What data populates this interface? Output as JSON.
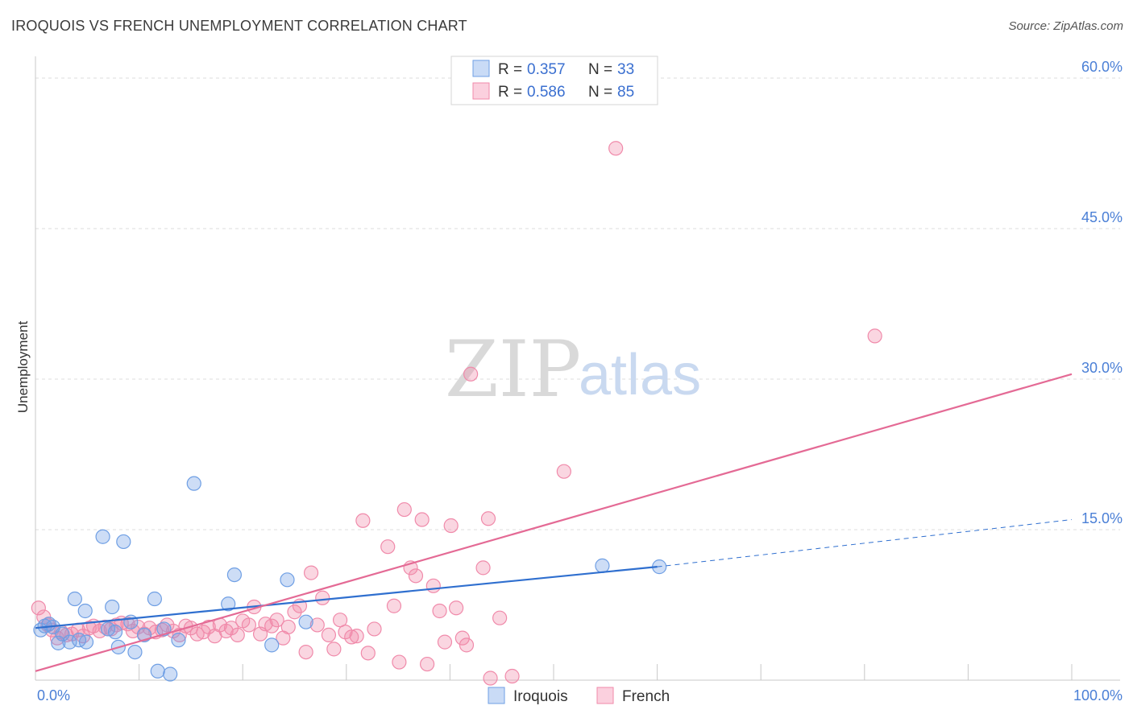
{
  "title": "IROQUOIS VS FRENCH UNEMPLOYMENT CORRELATION CHART",
  "source": "Source: ZipAtlas.com",
  "watermark": {
    "zip": "ZIP",
    "atlas": "atlas"
  },
  "colors": {
    "iroquois": "#6f9fe4",
    "iroquois_line": "#2f6fcf",
    "french": "#f08aaa",
    "french_line": "#e46a95",
    "tick_label": "#4a7fd6"
  },
  "legend": {
    "r_label": "R =",
    "n_label": "N =",
    "iroquois": {
      "r": "0.357",
      "n": "33"
    },
    "french": {
      "r": "0.586",
      "n": "85"
    }
  },
  "chart_data": {
    "type": "scatter",
    "title": "IROQUOIS VS FRENCH UNEMPLOYMENT CORRELATION CHART",
    "xlabel": "",
    "ylabel": "Unemployment",
    "xlim": [
      0,
      100
    ],
    "ylim": [
      0,
      60
    ],
    "x_tick_labels": [
      "0.0%",
      "100.0%"
    ],
    "y_ticks": [
      15,
      30,
      45,
      60
    ],
    "y_tick_labels": [
      "15.0%",
      "30.0%",
      "45.0%",
      "60.0%"
    ],
    "grid": true,
    "legend_position": "top-center",
    "series": [
      {
        "name": "Iroquois",
        "r": 0.357,
        "n": 33,
        "trend": {
          "x0": 0,
          "y0": 5.2,
          "x1": 60,
          "y1": 11.3,
          "dashed_to_x": 100,
          "dashed_to_y": 16.0
        },
        "points": [
          [
            0.5,
            5.0
          ],
          [
            0.9,
            5.4
          ],
          [
            1.3,
            5.6
          ],
          [
            1.7,
            5.3
          ],
          [
            2.2,
            3.7
          ],
          [
            2.6,
            4.6
          ],
          [
            3.3,
            3.8
          ],
          [
            3.8,
            8.1
          ],
          [
            4.2,
            4.0
          ],
          [
            4.8,
            6.9
          ],
          [
            4.9,
            3.8
          ],
          [
            6.5,
            14.3
          ],
          [
            7.0,
            5.1
          ],
          [
            7.4,
            7.3
          ],
          [
            7.7,
            4.8
          ],
          [
            8.0,
            3.3
          ],
          [
            8.5,
            13.8
          ],
          [
            9.2,
            5.8
          ],
          [
            9.6,
            2.8
          ],
          [
            10.5,
            4.5
          ],
          [
            11.5,
            8.1
          ],
          [
            11.8,
            0.9
          ],
          [
            12.4,
            5.1
          ],
          [
            13.0,
            0.6
          ],
          [
            13.8,
            4.0
          ],
          [
            15.3,
            19.6
          ],
          [
            18.6,
            7.6
          ],
          [
            19.2,
            10.5
          ],
          [
            22.8,
            3.5
          ],
          [
            24.3,
            10.0
          ],
          [
            26.1,
            5.8
          ],
          [
            54.7,
            11.4
          ],
          [
            60.2,
            11.3
          ]
        ]
      },
      {
        "name": "French",
        "r": 0.586,
        "n": 85,
        "trend": {
          "x0": 0,
          "y0": 0.9,
          "x1": 100,
          "y1": 30.5
        },
        "points": [
          [
            0.3,
            7.2
          ],
          [
            0.8,
            6.3
          ],
          [
            1.2,
            5.5
          ],
          [
            1.6,
            5.0
          ],
          [
            2.1,
            4.2
          ],
          [
            2.5,
            4.8
          ],
          [
            3.0,
            4.5
          ],
          [
            3.5,
            4.6
          ],
          [
            4.1,
            5.0
          ],
          [
            4.6,
            4.4
          ],
          [
            5.2,
            5.2
          ],
          [
            5.6,
            5.4
          ],
          [
            6.2,
            4.9
          ],
          [
            6.7,
            5.3
          ],
          [
            7.3,
            5.1
          ],
          [
            7.8,
            5.5
          ],
          [
            8.3,
            5.7
          ],
          [
            8.9,
            5.6
          ],
          [
            9.4,
            4.9
          ],
          [
            9.9,
            5.3
          ],
          [
            10.5,
            4.6
          ],
          [
            11.0,
            5.2
          ],
          [
            11.6,
            4.8
          ],
          [
            12.2,
            5.0
          ],
          [
            12.7,
            5.5
          ],
          [
            13.3,
            4.9
          ],
          [
            13.9,
            4.5
          ],
          [
            14.5,
            5.4
          ],
          [
            15.0,
            5.2
          ],
          [
            15.6,
            4.6
          ],
          [
            16.2,
            4.8
          ],
          [
            16.7,
            5.3
          ],
          [
            17.3,
            4.4
          ],
          [
            17.8,
            5.5
          ],
          [
            18.4,
            4.9
          ],
          [
            18.9,
            5.2
          ],
          [
            19.5,
            4.5
          ],
          [
            20.0,
            5.9
          ],
          [
            20.6,
            5.5
          ],
          [
            21.1,
            7.3
          ],
          [
            21.7,
            4.6
          ],
          [
            22.2,
            5.6
          ],
          [
            22.8,
            5.4
          ],
          [
            23.3,
            6.0
          ],
          [
            23.9,
            4.2
          ],
          [
            24.4,
            5.3
          ],
          [
            25.0,
            6.8
          ],
          [
            25.5,
            7.4
          ],
          [
            26.1,
            2.8
          ],
          [
            26.6,
            10.7
          ],
          [
            27.2,
            5.5
          ],
          [
            27.7,
            8.2
          ],
          [
            28.3,
            4.5
          ],
          [
            28.8,
            3.1
          ],
          [
            29.4,
            6.0
          ],
          [
            29.9,
            4.8
          ],
          [
            30.5,
            4.3
          ],
          [
            31.0,
            4.4
          ],
          [
            31.6,
            15.9
          ],
          [
            32.1,
            2.7
          ],
          [
            32.7,
            5.1
          ],
          [
            34.0,
            13.3
          ],
          [
            34.6,
            7.4
          ],
          [
            35.1,
            1.8
          ],
          [
            35.6,
            17.0
          ],
          [
            36.2,
            11.2
          ],
          [
            36.7,
            10.4
          ],
          [
            37.3,
            16.0
          ],
          [
            37.8,
            1.6
          ],
          [
            38.4,
            9.4
          ],
          [
            39.0,
            6.9
          ],
          [
            39.5,
            3.8
          ],
          [
            40.1,
            15.4
          ],
          [
            40.6,
            7.2
          ],
          [
            41.2,
            4.2
          ],
          [
            41.6,
            3.5
          ],
          [
            42.0,
            30.5
          ],
          [
            43.2,
            11.2
          ],
          [
            43.7,
            16.1
          ],
          [
            44.8,
            6.2
          ],
          [
            46.0,
            0.4
          ],
          [
            51.0,
            20.8
          ],
          [
            56.0,
            53.0
          ],
          [
            81.0,
            34.3
          ],
          [
            43.9,
            0.2
          ]
        ]
      }
    ]
  }
}
